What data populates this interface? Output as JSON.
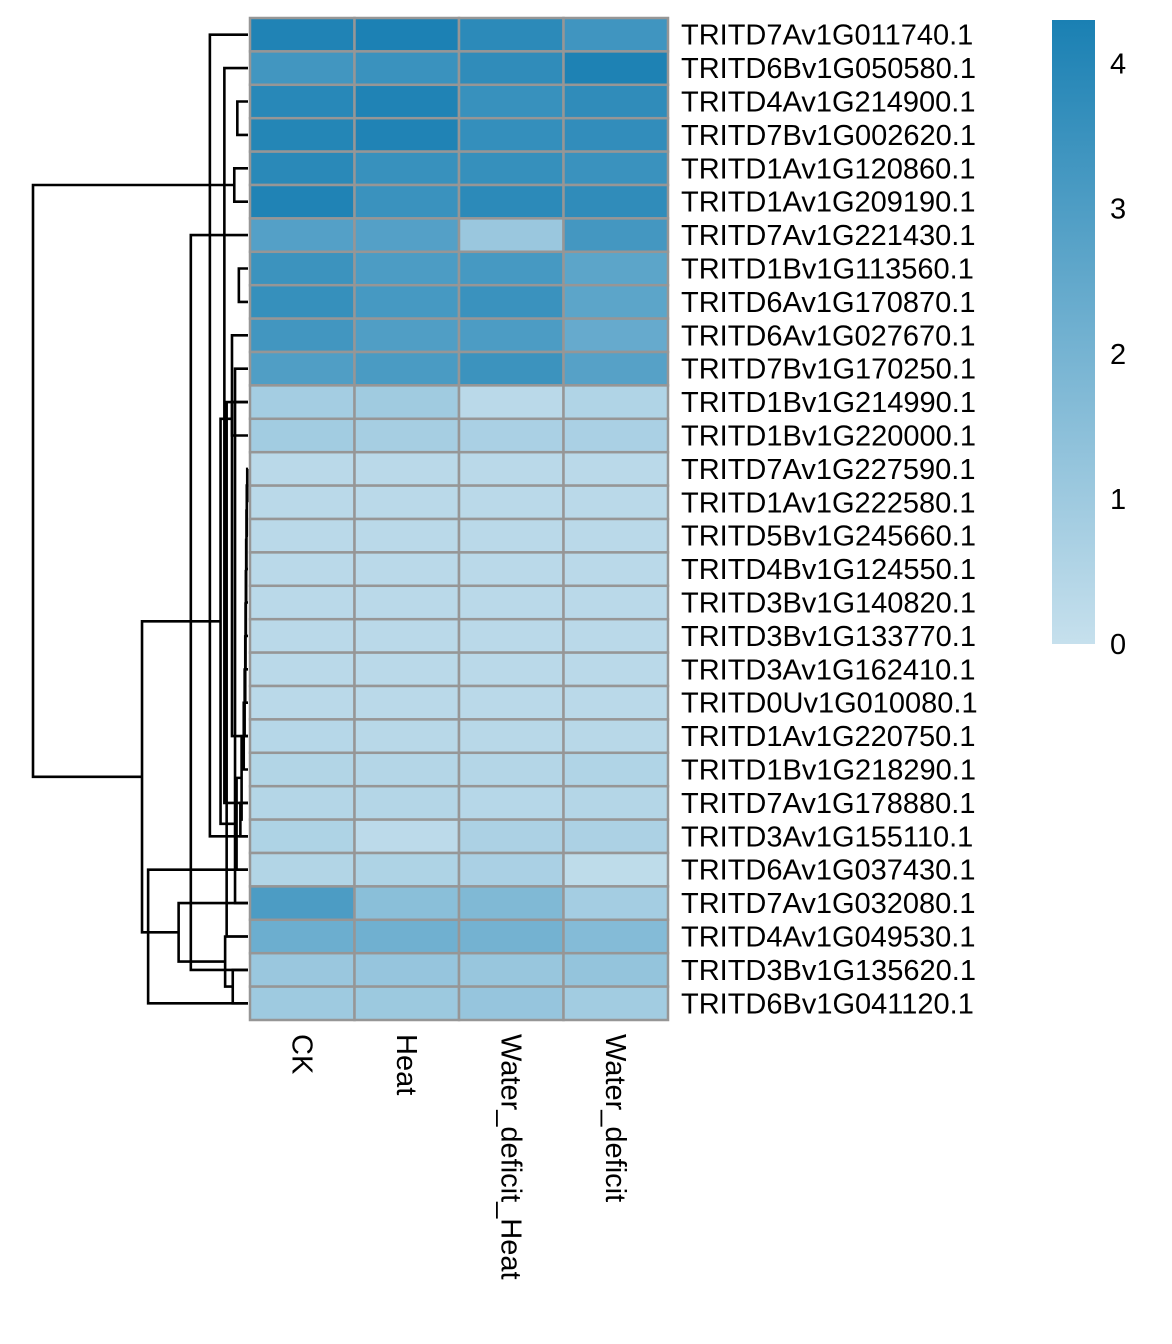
{
  "chart_data": {
    "type": "heatmap",
    "title": "",
    "xlabel": "",
    "ylabel": "",
    "columns": [
      "CK",
      "Heat",
      "Water_deficit_Heat",
      "Water_deficit"
    ],
    "rows": [
      "TRITD7Av1G011740.1",
      "TRITD6Bv1G050580.1",
      "TRITD4Av1G214900.1",
      "TRITD7Bv1G002620.1",
      "TRITD1Av1G120860.1",
      "TRITD1Av1G209190.1",
      "TRITD7Av1G221430.1",
      "TRITD1Bv1G113560.1",
      "TRITD6Av1G170870.1",
      "TRITD6Av1G027670.1",
      "TRITD7Bv1G170250.1",
      "TRITD1Bv1G214990.1",
      "TRITD1Bv1G220000.1",
      "TRITD7Av1G227590.1",
      "TRITD1Av1G222580.1",
      "TRITD5Bv1G245660.1",
      "TRITD4Bv1G124550.1",
      "TRITD3Bv1G140820.1",
      "TRITD3Bv1G133770.1",
      "TRITD3Av1G162410.1",
      "TRITD0Uv1G010080.1",
      "TRITD1Av1G220750.1",
      "TRITD1Bv1G218290.1",
      "TRITD7Av1G178880.1",
      "TRITD3Av1G155110.1",
      "TRITD6Av1G037430.1",
      "TRITD7Av1G032080.1",
      "TRITD4Av1G049530.1",
      "TRITD3Bv1G135620.1",
      "TRITD6Bv1G041120.1"
    ],
    "values": [
      [
        4.15,
        4.25,
        3.85,
        3.35
      ],
      [
        3.3,
        3.5,
        3.75,
        4.2
      ],
      [
        3.95,
        4.15,
        3.55,
        3.75
      ],
      [
        4.05,
        4.15,
        3.65,
        3.7
      ],
      [
        3.9,
        3.55,
        3.6,
        3.5
      ],
      [
        4.15,
        3.5,
        3.85,
        3.75
      ],
      [
        2.85,
        2.85,
        1.1,
        3.25
      ],
      [
        3.45,
        3.05,
        3.2,
        2.65
      ],
      [
        3.6,
        3.2,
        3.5,
        2.65
      ],
      [
        3.3,
        2.95,
        3.05,
        2.4
      ],
      [
        2.95,
        3.1,
        3.45,
        2.8
      ],
      [
        0.85,
        0.95,
        0.3,
        0.55
      ],
      [
        0.9,
        0.8,
        0.7,
        0.7
      ],
      [
        0.3,
        0.3,
        0.3,
        0.3
      ],
      [
        0.3,
        0.3,
        0.3,
        0.3
      ],
      [
        0.3,
        0.3,
        0.3,
        0.3
      ],
      [
        0.3,
        0.3,
        0.3,
        0.3
      ],
      [
        0.3,
        0.3,
        0.3,
        0.3
      ],
      [
        0.3,
        0.3,
        0.3,
        0.3
      ],
      [
        0.3,
        0.3,
        0.3,
        0.3
      ],
      [
        0.3,
        0.3,
        0.3,
        0.3
      ],
      [
        0.4,
        0.35,
        0.35,
        0.35
      ],
      [
        0.5,
        0.45,
        0.45,
        0.55
      ],
      [
        0.45,
        0.45,
        0.4,
        0.45
      ],
      [
        0.6,
        0.25,
        0.65,
        0.65
      ],
      [
        0.5,
        0.6,
        0.7,
        0.2
      ],
      [
        3.05,
        1.5,
        1.75,
        0.85
      ],
      [
        2.25,
        2.15,
        2.05,
        1.65
      ],
      [
        1.1,
        1.2,
        1.15,
        1.25
      ],
      [
        1.0,
        1.05,
        1.2,
        0.9
      ]
    ],
    "colorscale": {
      "min": 0,
      "max": 4.3,
      "low_color": "#c6e0ed",
      "high_color": "#1a80b3"
    },
    "legend": {
      "ticks": [
        0,
        1,
        2,
        3,
        4
      ],
      "placement": "right"
    },
    "row_dendrogram": {
      "description": "hierarchical clustering of rows",
      "merges": [
        [
          4,
          5,
          0.9
        ],
        [
          2,
          3,
          0.7
        ],
        [
          21,
          9,
          1.05
        ],
        [
          1,
          23,
          1.55
        ],
        [
          0,
          24,
          2.5
        ],
        [
          7,
          8,
          0.6
        ],
        [
          26,
          10,
          0.85
        ],
        [
          27,
          11,
          1.4
        ],
        [
          6,
          28,
          3.75
        ],
        [
          25,
          29,
          6.55
        ],
        [
          13,
          14,
          0.05
        ],
        [
          40,
          15,
          0.08
        ],
        [
          41,
          16,
          0.1
        ],
        [
          42,
          17,
          0.12
        ],
        [
          43,
          18,
          0.14
        ],
        [
          44,
          19,
          0.16
        ],
        [
          45,
          20,
          0.18
        ],
        [
          46,
          21,
          0.22
        ],
        [
          47,
          22,
          0.28
        ],
        [
          23,
          24,
          0.5
        ],
        [
          48,
          49,
          0.42
        ],
        [
          25,
          50,
          0.75
        ],
        [
          11,
          12,
          1.05
        ],
        [
          52,
          51,
          1.8
        ],
        [
          28,
          29,
          1.0
        ],
        [
          27,
          54,
          1.5
        ],
        [
          26,
          55,
          4.55
        ],
        [
          53,
          56,
          6.95
        ],
        [
          30,
          57,
          14.1
        ]
      ]
    }
  }
}
